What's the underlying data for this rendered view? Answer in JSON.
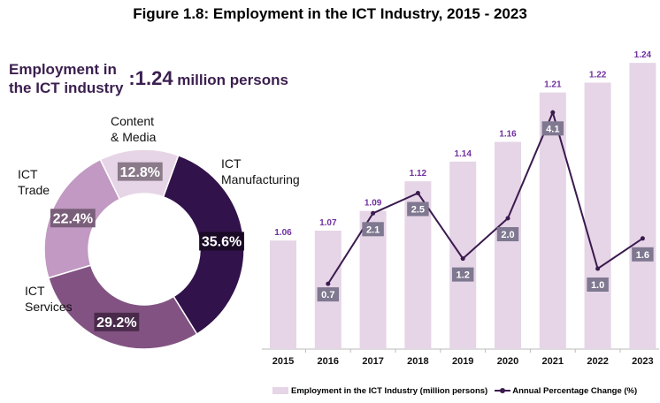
{
  "chart_data": [
    {
      "type": "pie",
      "title": "",
      "center_label": "",
      "slices": [
        {
          "label": "ICT Manufacturing",
          "value": 35.6,
          "text": "35.6%",
          "color": "#32124a"
        },
        {
          "label": "ICT Services",
          "value": 29.2,
          "text": "29.2%",
          "color": "#825382"
        },
        {
          "label": "ICT Trade",
          "value": 22.4,
          "text": "22.4%",
          "color": "#c199c2"
        },
        {
          "label": "Content & Media",
          "value": 12.8,
          "text": "12.8%",
          "color": "#e6d5e6"
        }
      ],
      "label_lines": {
        "ICT Manufacturing": [
          "ICT",
          "Manufacturing"
        ],
        "ICT Services": [
          "ICT",
          "Services"
        ],
        "ICT Trade": [
          "ICT",
          "Trade"
        ],
        "Content & Media": [
          "Content",
          "& Media"
        ]
      }
    },
    {
      "type": "bar+line",
      "title": "Figure 1.8:  Employment in the ICT Industry, 2015 - 2023",
      "categories": [
        "2015",
        "2016",
        "2017",
        "2018",
        "2019",
        "2020",
        "2021",
        "2022",
        "2023"
      ],
      "series": [
        {
          "name": "Employment in the ICT Industry (million persons)",
          "type": "bar",
          "color": "#e5d5e6",
          "values": [
            1.06,
            1.07,
            1.09,
            1.12,
            1.14,
            1.16,
            1.21,
            1.22,
            1.24
          ],
          "labels": [
            "1.06",
            "1.07",
            "1.09",
            "1.12",
            "1.14",
            "1.16",
            "1.21",
            "1.22",
            "1.24"
          ]
        },
        {
          "name": "Annual Percentage Change (%)",
          "type": "line",
          "color": "#3b1a4f",
          "values": [
            null,
            0.7,
            2.1,
            2.5,
            1.2,
            2.0,
            4.1,
            1.0,
            1.6
          ],
          "labels": [
            "",
            "0.7",
            "2.1",
            "2.5",
            "1.2",
            "2.0",
            "4.1",
            "1.0",
            "1.6"
          ]
        }
      ],
      "ylim": [
        0.95,
        1.25
      ],
      "y2lim": [
        0,
        5
      ],
      "legend": "bottom"
    }
  ],
  "headline": {
    "label_line1": "Employment in",
    "label_line2": "the ICT industry",
    "value": ":1.24",
    "unit": " million persons"
  }
}
